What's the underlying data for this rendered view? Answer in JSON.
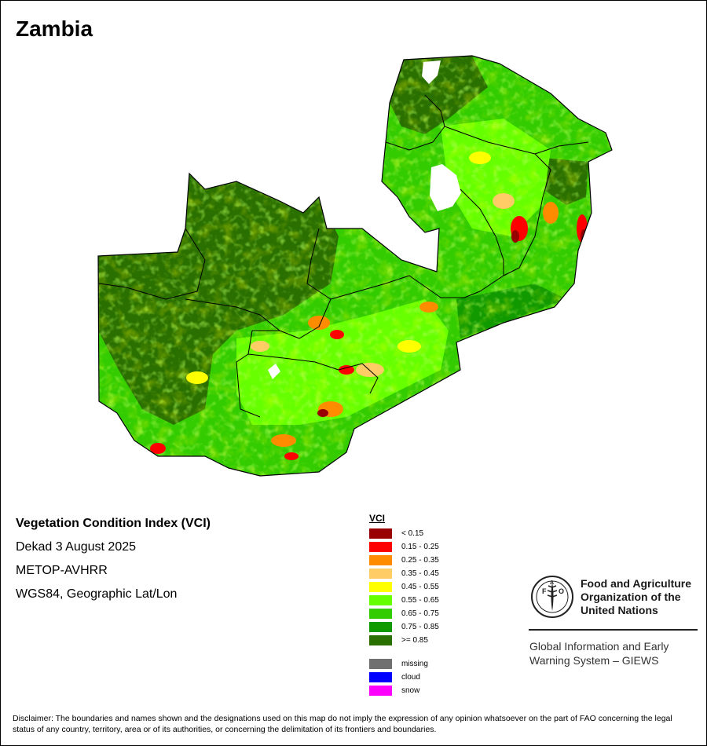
{
  "map": {
    "title": "Zambia",
    "colors": {
      "vci_lt_0_15": "#990000",
      "vci_0_15_0_25": "#ff0000",
      "vci_0_25_0_35": "#ff8c00",
      "vci_0_35_0_45": "#ffcc66",
      "vci_0_45_0_55": "#ffff00",
      "vci_0_55_0_65": "#66ff00",
      "vci_0_65_0_75": "#33cc00",
      "vci_0_75_0_85": "#119900",
      "vci_ge_0_85": "#2a7000",
      "boundary": "#000000"
    }
  },
  "info": {
    "heading": "Vegetation Condition Index (VCI)",
    "period": "Dekad 3 August 2025",
    "sensor": "METOP-AVHRR",
    "projection": "WGS84, Geographic Lat/Lon"
  },
  "legend": {
    "title": "VCI",
    "classes": [
      {
        "label": "< 0.15",
        "color": "#990000"
      },
      {
        "label": "0.15 - 0.25",
        "color": "#ff0000"
      },
      {
        "label": "0.25 - 0.35",
        "color": "#ff8c00"
      },
      {
        "label": "0.35 - 0.45",
        "color": "#ffcc66"
      },
      {
        "label": "0.45 - 0.55",
        "color": "#ffff00"
      },
      {
        "label": "0.55 - 0.65",
        "color": "#66ff00"
      },
      {
        "label": "0.65 - 0.75",
        "color": "#33cc00"
      },
      {
        "label": "0.75 - 0.85",
        "color": "#119900"
      },
      {
        "label": ">= 0.85",
        "color": "#2a7000"
      }
    ],
    "extra": [
      {
        "label": "missing",
        "color": "#707070"
      },
      {
        "label": "cloud",
        "color": "#0000ff"
      },
      {
        "label": "snow",
        "color": "#ff00ff"
      }
    ]
  },
  "logo": {
    "icon": "fao-emblem-icon",
    "emblem_letters": [
      "F",
      "A",
      "O"
    ],
    "emblem_motto": "FIAT PANIS",
    "org_line1": "Food and Agriculture",
    "org_line2": "Organization of the",
    "org_line3": "United Nations"
  },
  "giews": {
    "line1": "Global Information and Early",
    "line2": "Warning System – GIEWS"
  },
  "disclaimer": "Disclaimer: The boundaries and names shown and the designations used on this map do not imply the expression of any opinion whatsoever on the part of FAO concerning the legal status of any country, territory, area or of its authorities, or concerning the delimitation of its frontiers and boundaries."
}
